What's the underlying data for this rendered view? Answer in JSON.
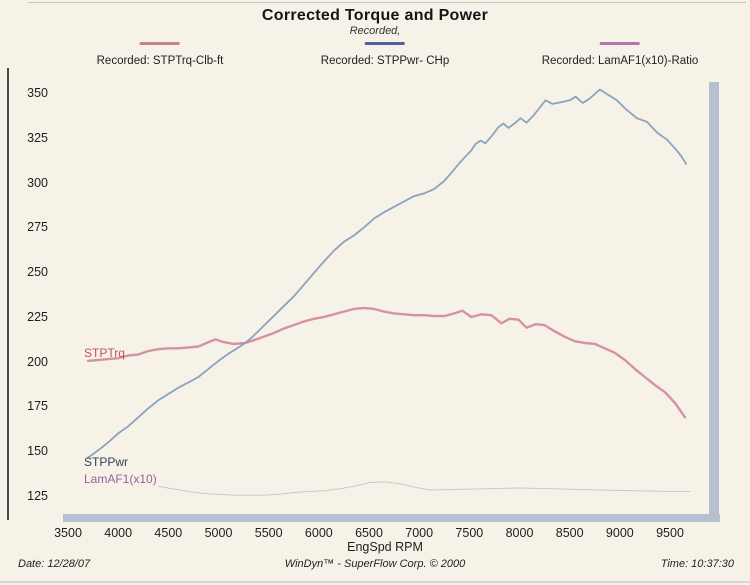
{
  "footer": {
    "date_label": "Date: 12/28/07",
    "credit": "WinDyn™ - SuperFlow Corp. © 2000",
    "time_label": "Time: 10:37:30"
  },
  "chart_data": {
    "type": "line",
    "title": "Corrected Torque and Power",
    "subtitle": "Recorded,",
    "xlabel": "EngSpd RPM",
    "xlim": [
      3500,
      9750
    ],
    "ylim": [
      115,
      362
    ],
    "grid": "off",
    "legend_position": "top",
    "x_ticks": [
      3500,
      4000,
      4500,
      5000,
      5500,
      6000,
      6500,
      7000,
      7500,
      8000,
      8500,
      9000,
      9500
    ],
    "y_ticks": [
      350,
      325,
      300,
      275,
      250,
      225,
      200,
      175,
      150,
      125
    ],
    "series": [
      {
        "name": "Recorded: STPTrq-Clb-ft",
        "label": "STPTrq",
        "color": "#d492a2",
        "swatch": "#c9808f",
        "label_color": "#c05168",
        "points": [
          [
            3700,
            201
          ],
          [
            3800,
            201.5
          ],
          [
            3900,
            202
          ],
          [
            4000,
            202.5
          ],
          [
            4100,
            204
          ],
          [
            4200,
            204.5
          ],
          [
            4300,
            206.5
          ],
          [
            4400,
            207.5
          ],
          [
            4500,
            208
          ],
          [
            4600,
            208
          ],
          [
            4700,
            208.5
          ],
          [
            4800,
            209
          ],
          [
            4900,
            211.5
          ],
          [
            4970,
            213
          ],
          [
            5050,
            211.5
          ],
          [
            5150,
            210.5
          ],
          [
            5265,
            211
          ],
          [
            5350,
            212.5
          ],
          [
            5450,
            214.5
          ],
          [
            5550,
            216.5
          ],
          [
            5650,
            219
          ],
          [
            5750,
            221
          ],
          [
            5850,
            223
          ],
          [
            5950,
            224.5
          ],
          [
            6050,
            225.5
          ],
          [
            6150,
            227
          ],
          [
            6250,
            228.5
          ],
          [
            6350,
            230
          ],
          [
            6450,
            230.5
          ],
          [
            6550,
            230
          ],
          [
            6650,
            228.5
          ],
          [
            6750,
            227.5
          ],
          [
            6850,
            227
          ],
          [
            6950,
            226.5
          ],
          [
            7050,
            226.5
          ],
          [
            7150,
            226
          ],
          [
            7250,
            226
          ],
          [
            7350,
            227.5
          ],
          [
            7430,
            229
          ],
          [
            7520,
            225.5
          ],
          [
            7620,
            227
          ],
          [
            7720,
            226.5
          ],
          [
            7820,
            222
          ],
          [
            7900,
            224.5
          ],
          [
            7990,
            224
          ],
          [
            8070,
            219.5
          ],
          [
            8160,
            221.5
          ],
          [
            8250,
            221
          ],
          [
            8350,
            217.5
          ],
          [
            8450,
            214.5
          ],
          [
            8550,
            212
          ],
          [
            8650,
            211
          ],
          [
            8750,
            210.5
          ],
          [
            8850,
            208
          ],
          [
            8950,
            205.5
          ],
          [
            9050,
            201.5
          ],
          [
            9150,
            196.5
          ],
          [
            9250,
            192
          ],
          [
            9350,
            187.5
          ],
          [
            9450,
            183.5
          ],
          [
            9550,
            177.5
          ],
          [
            9650,
            169.5
          ]
        ]
      },
      {
        "name": "Recorded: STPPwr- CHp",
        "label": "STPPwr",
        "color": "#8ba3bc",
        "swatch": "#5060a5",
        "label_color": "#39425a",
        "points": [
          [
            3700,
            147
          ],
          [
            3800,
            151
          ],
          [
            3900,
            155.5
          ],
          [
            4000,
            160.5
          ],
          [
            4100,
            164.5
          ],
          [
            4200,
            169.5
          ],
          [
            4300,
            174.5
          ],
          [
            4400,
            179
          ],
          [
            4500,
            182.5
          ],
          [
            4600,
            186
          ],
          [
            4700,
            189
          ],
          [
            4800,
            192
          ],
          [
            4900,
            196.5
          ],
          [
            5000,
            201
          ],
          [
            5100,
            205
          ],
          [
            5200,
            208.5
          ],
          [
            5265,
            211
          ],
          [
            5350,
            215
          ],
          [
            5450,
            220.5
          ],
          [
            5550,
            226
          ],
          [
            5650,
            231.5
          ],
          [
            5750,
            237
          ],
          [
            5850,
            243.5
          ],
          [
            5950,
            250
          ],
          [
            6050,
            256.5
          ],
          [
            6150,
            262.5
          ],
          [
            6250,
            267.5
          ],
          [
            6350,
            271
          ],
          [
            6450,
            275.5
          ],
          [
            6550,
            280.5
          ],
          [
            6650,
            284
          ],
          [
            6750,
            287
          ],
          [
            6850,
            290
          ],
          [
            6950,
            293
          ],
          [
            7050,
            294.5
          ],
          [
            7150,
            297
          ],
          [
            7250,
            301.5
          ],
          [
            7320,
            306
          ],
          [
            7410,
            312
          ],
          [
            7460,
            315
          ],
          [
            7520,
            318.5
          ],
          [
            7560,
            322
          ],
          [
            7610,
            324
          ],
          [
            7660,
            322.5
          ],
          [
            7730,
            327
          ],
          [
            7790,
            331.5
          ],
          [
            7840,
            333.5
          ],
          [
            7890,
            331
          ],
          [
            7960,
            334
          ],
          [
            8010,
            336.5
          ],
          [
            8070,
            334
          ],
          [
            8140,
            338
          ],
          [
            8210,
            343
          ],
          [
            8260,
            346.5
          ],
          [
            8330,
            344.5
          ],
          [
            8420,
            345.5
          ],
          [
            8500,
            346.5
          ],
          [
            8560,
            348.5
          ],
          [
            8630,
            345
          ],
          [
            8700,
            347.5
          ],
          [
            8800,
            352.5
          ],
          [
            8870,
            350
          ],
          [
            8970,
            346.5
          ],
          [
            9070,
            341
          ],
          [
            9170,
            336.5
          ],
          [
            9270,
            334.5
          ],
          [
            9370,
            328.5
          ],
          [
            9470,
            324.5
          ],
          [
            9560,
            319
          ],
          [
            9610,
            315.5
          ],
          [
            9660,
            311
          ]
        ]
      },
      {
        "name": "Recorded: LamAF1(x10)-Ratio",
        "label": "LamAF1(x10)",
        "color": "#c7c4c9",
        "swatch": "#b376b3",
        "label_color": "#96619f",
        "points": [
          [
            4400,
            131
          ],
          [
            4550,
            129.5
          ],
          [
            4700,
            128
          ],
          [
            4850,
            127
          ],
          [
            5000,
            126.5
          ],
          [
            5150,
            126
          ],
          [
            5300,
            126
          ],
          [
            5450,
            126
          ],
          [
            5600,
            126.5
          ],
          [
            5750,
            127.5
          ],
          [
            5900,
            128
          ],
          [
            6050,
            128.5
          ],
          [
            6200,
            129.5
          ],
          [
            6350,
            131
          ],
          [
            6500,
            133
          ],
          [
            6650,
            133.5
          ],
          [
            6800,
            132.5
          ],
          [
            6950,
            130.5
          ],
          [
            7100,
            129
          ],
          [
            7250,
            129
          ],
          [
            7400,
            129.3
          ],
          [
            7600,
            129.5
          ],
          [
            7800,
            129.8
          ],
          [
            8000,
            130
          ],
          [
            8200,
            129.8
          ],
          [
            8400,
            129.5
          ],
          [
            8700,
            129
          ],
          [
            9000,
            128.7
          ],
          [
            9300,
            128.3
          ],
          [
            9600,
            128
          ],
          [
            9700,
            128
          ]
        ]
      }
    ]
  }
}
